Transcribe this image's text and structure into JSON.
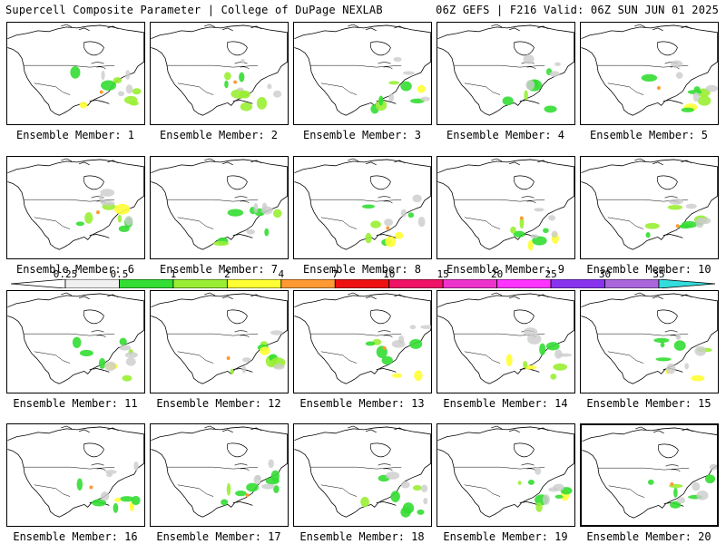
{
  "header": {
    "title": "Supercell Composite Parameter | College of DuPage NEXLAB",
    "run_info": "06Z GEFS | F216 Valid: 06Z SUN JUN 01 2025"
  },
  "legend": {
    "ticks": [
      "0.25",
      "0.5",
      "1",
      "2",
      "4",
      "7",
      "10",
      "15",
      "20",
      "25",
      "30",
      "35"
    ],
    "colors": [
      "#f0f0f0",
      "#33dd33",
      "#99ee33",
      "#ffff33",
      "#ff9933",
      "#ee1111",
      "#ee1166",
      "#ee33cc",
      "#ff33ff",
      "#8833ee",
      "#aa66dd",
      "#33dddd"
    ]
  },
  "panels": [
    {
      "label": "Ensemble Member: 1"
    },
    {
      "label": "Ensemble Member: 2"
    },
    {
      "label": "Ensemble Member: 3"
    },
    {
      "label": "Ensemble Member: 4"
    },
    {
      "label": "Ensemble Member: 5"
    },
    {
      "label": "Ensemble Member: 6"
    },
    {
      "label": "Ensemble Member: 7"
    },
    {
      "label": "Ensemble Member: 8"
    },
    {
      "label": "Ensemble Member: 9"
    },
    {
      "label": "Ensemble Member: 10"
    },
    {
      "label": "Ensemble Member: 11"
    },
    {
      "label": "Ensemble Member: 12"
    },
    {
      "label": "Ensemble Member: 13"
    },
    {
      "label": "Ensemble Member: 14"
    },
    {
      "label": "Ensemble Member: 15"
    },
    {
      "label": "Ensemble Member: 16"
    },
    {
      "label": "Ensemble Member: 17"
    },
    {
      "label": "Ensemble Member: 18"
    },
    {
      "label": "Ensemble Member: 19"
    },
    {
      "label": "Ensemble Member: 20"
    }
  ]
}
